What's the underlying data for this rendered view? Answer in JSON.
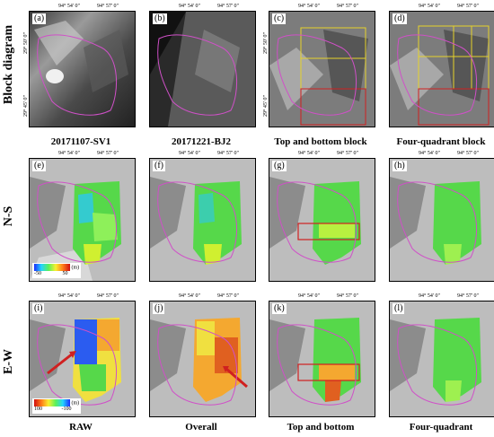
{
  "rows": [
    {
      "label": "Block diagram"
    },
    {
      "label": "N-S"
    },
    {
      "label": "E-W"
    }
  ],
  "panels": [
    {
      "tag": "(a)"
    },
    {
      "tag": "(b)"
    },
    {
      "tag": "(c)"
    },
    {
      "tag": "(d)"
    },
    {
      "tag": "(e)"
    },
    {
      "tag": "(f)"
    },
    {
      "tag": "(g)"
    },
    {
      "tag": "(h)"
    },
    {
      "tag": "(i)"
    },
    {
      "tag": "(j)"
    },
    {
      "tag": "(k)"
    },
    {
      "tag": "(l)"
    }
  ],
  "captions_top": [
    "20171107-SV1",
    "20171221-BJ2",
    "Top and bottom block",
    "Four-quadrant block"
  ],
  "captions_bottom": [
    "RAW",
    "Overall",
    "Top and bottom",
    "Four-quadrant"
  ],
  "coords": {
    "lon1": "94° 54' 0\"",
    "lon2": "94° 57' 0\"",
    "lat1": "29° 50' 0\"",
    "lat2": "29° 45' 0\""
  },
  "legend_ns": {
    "unit": "(m)",
    "min": "-50",
    "max": "50"
  },
  "legend_ew": {
    "unit": "(m)",
    "min": "100",
    "max": "-100"
  },
  "colors": {
    "outline": "#d050c8",
    "block_lines": "#e6d22a",
    "highlight_box": "#d02020",
    "arrow": "#d02020"
  }
}
